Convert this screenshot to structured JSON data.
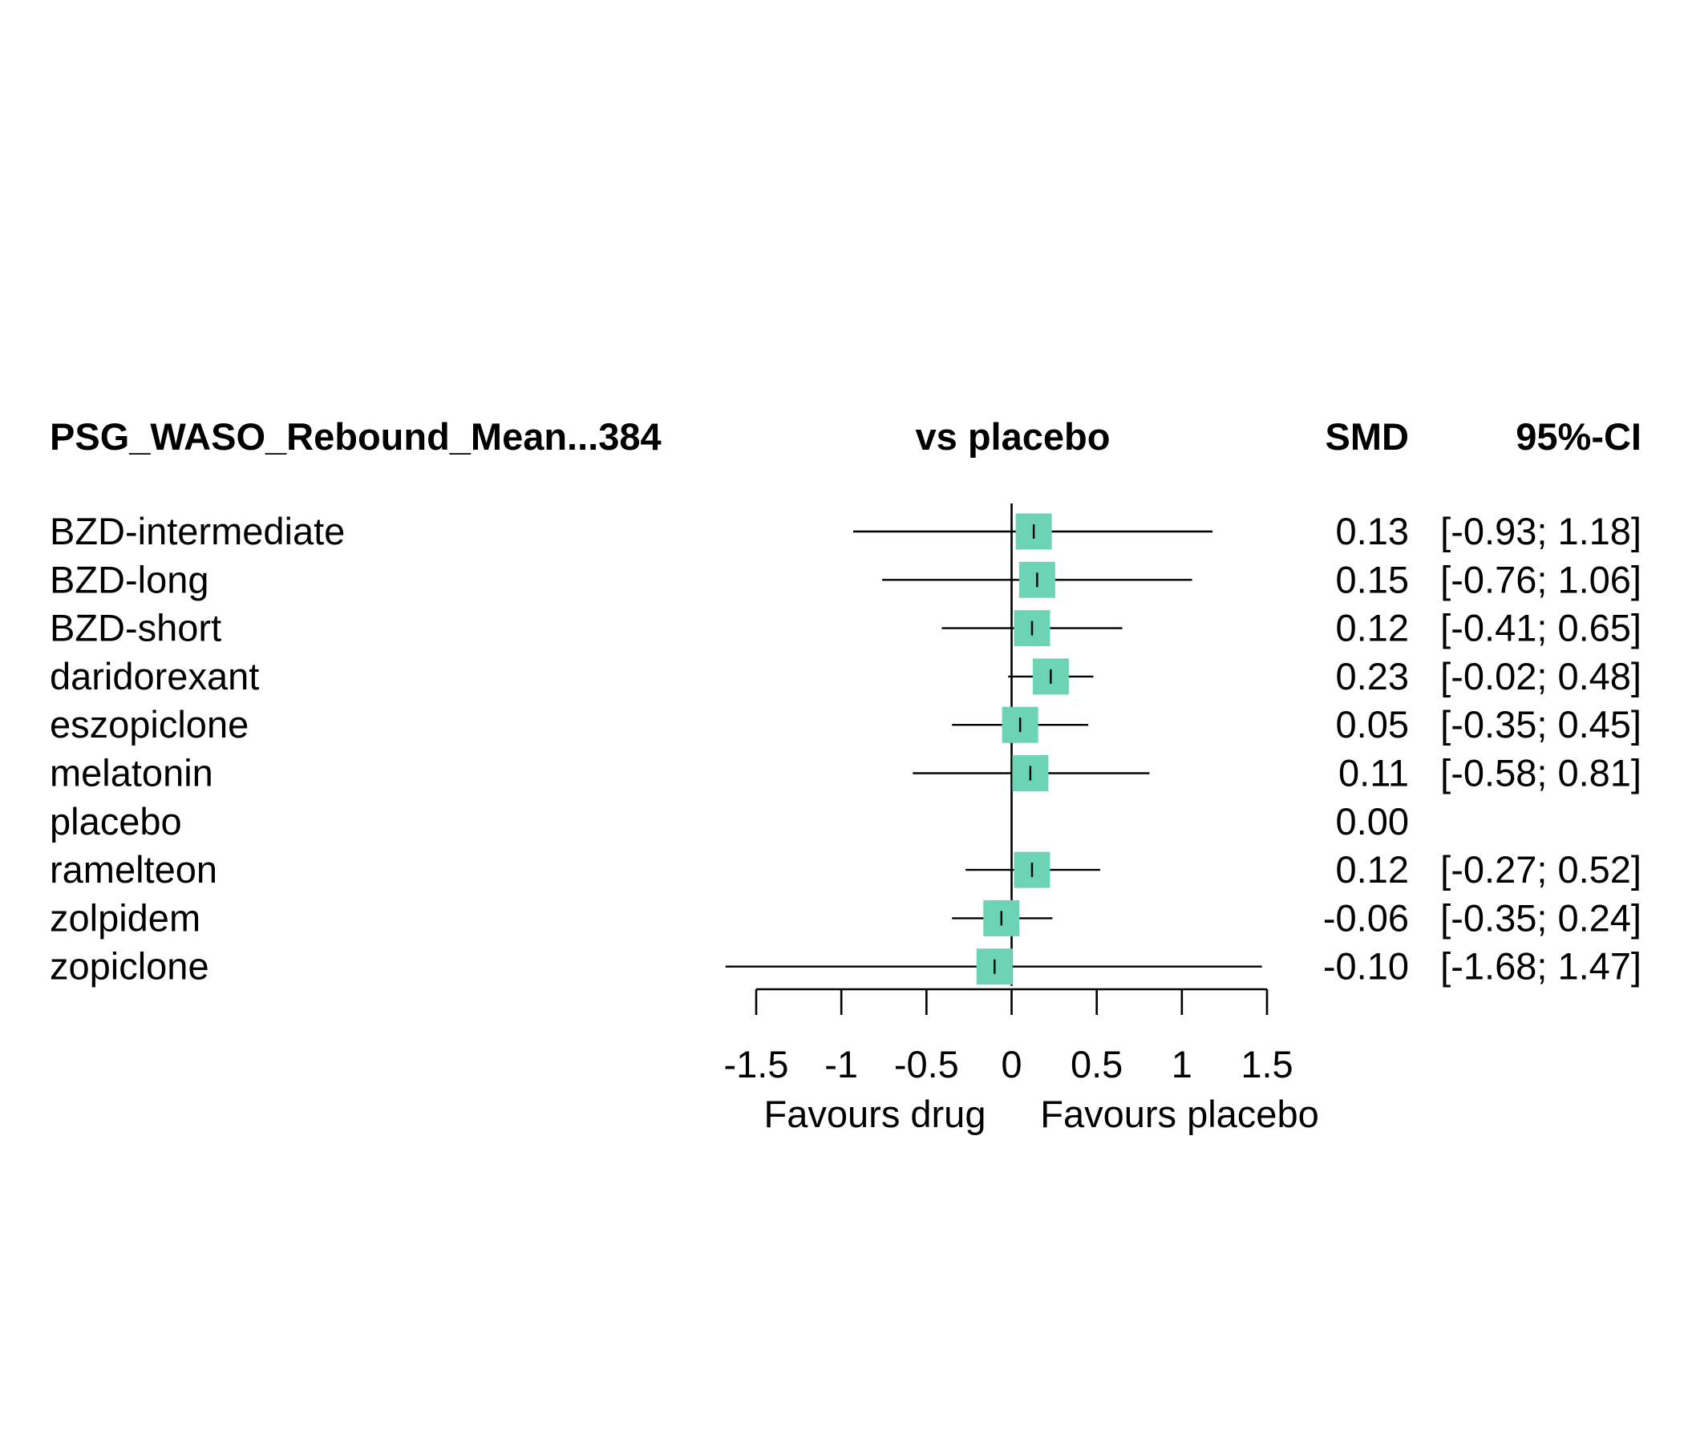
{
  "chart_data": {
    "type": "forest",
    "header": {
      "left": "PSG_WASO_Rebound_Mean...384",
      "center": "vs placebo",
      "smd": "SMD",
      "ci": "95%-CI"
    },
    "rows": [
      {
        "label": "BZD-intermediate",
        "smd": 0.13,
        "lower": -0.93,
        "upper": 1.18,
        "smd_text": "0.13",
        "ci_text": "[-0.93; 1.18]"
      },
      {
        "label": "BZD-long",
        "smd": 0.15,
        "lower": -0.76,
        "upper": 1.06,
        "smd_text": "0.15",
        "ci_text": "[-0.76; 1.06]"
      },
      {
        "label": "BZD-short",
        "smd": 0.12,
        "lower": -0.41,
        "upper": 0.65,
        "smd_text": "0.12",
        "ci_text": "[-0.41; 0.65]"
      },
      {
        "label": "daridorexant",
        "smd": 0.23,
        "lower": -0.02,
        "upper": 0.48,
        "smd_text": "0.23",
        "ci_text": "[-0.02; 0.48]"
      },
      {
        "label": "eszopiclone",
        "smd": 0.05,
        "lower": -0.35,
        "upper": 0.45,
        "smd_text": "0.05",
        "ci_text": "[-0.35; 0.45]"
      },
      {
        "label": "melatonin",
        "smd": 0.11,
        "lower": -0.58,
        "upper": 0.81,
        "smd_text": "0.11",
        "ci_text": "[-0.58; 0.81]"
      },
      {
        "label": "placebo",
        "smd": 0.0,
        "lower": null,
        "upper": null,
        "smd_text": "0.00",
        "ci_text": ""
      },
      {
        "label": "ramelteon",
        "smd": 0.12,
        "lower": -0.27,
        "upper": 0.52,
        "smd_text": "0.12",
        "ci_text": "[-0.27; 0.52]"
      },
      {
        "label": "zolpidem",
        "smd": -0.06,
        "lower": -0.35,
        "upper": 0.24,
        "smd_text": "-0.06",
        "ci_text": "[-0.35; 0.24]"
      },
      {
        "label": "zopiclone",
        "smd": -0.1,
        "lower": -1.68,
        "upper": 1.47,
        "smd_text": "-0.10",
        "ci_text": "[-1.68; 1.47]"
      }
    ],
    "x_axis": {
      "ticks": [
        -1.5,
        -1,
        -0.5,
        0,
        0.5,
        1,
        1.5
      ],
      "tick_labels": [
        "-1.5",
        "-1",
        "-0.5",
        "0",
        "0.5",
        "1",
        "1.5"
      ],
      "xlim": [
        -1.5,
        1.5
      ],
      "reference_line": 0,
      "left_label": "Favours drug",
      "right_label": "Favours placebo"
    },
    "colors": {
      "box": "#6dd3b5",
      "line": "#000000"
    }
  }
}
